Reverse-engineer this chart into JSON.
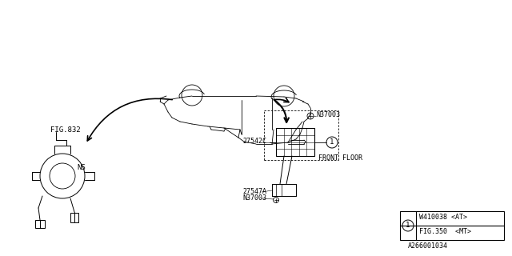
{
  "bg_color": "#ffffff",
  "title": "",
  "fig_label": "FIG.832",
  "ns_label": "NS",
  "part1": "27542C",
  "part2": "N37003",
  "part3": "27547A",
  "part4": "FRONT FLOOR",
  "legend_line1": "W410038 <AT>",
  "legend_line2": "FIG.350  <MT>",
  "doc_num": "A266001034",
  "circle_label": "1"
}
